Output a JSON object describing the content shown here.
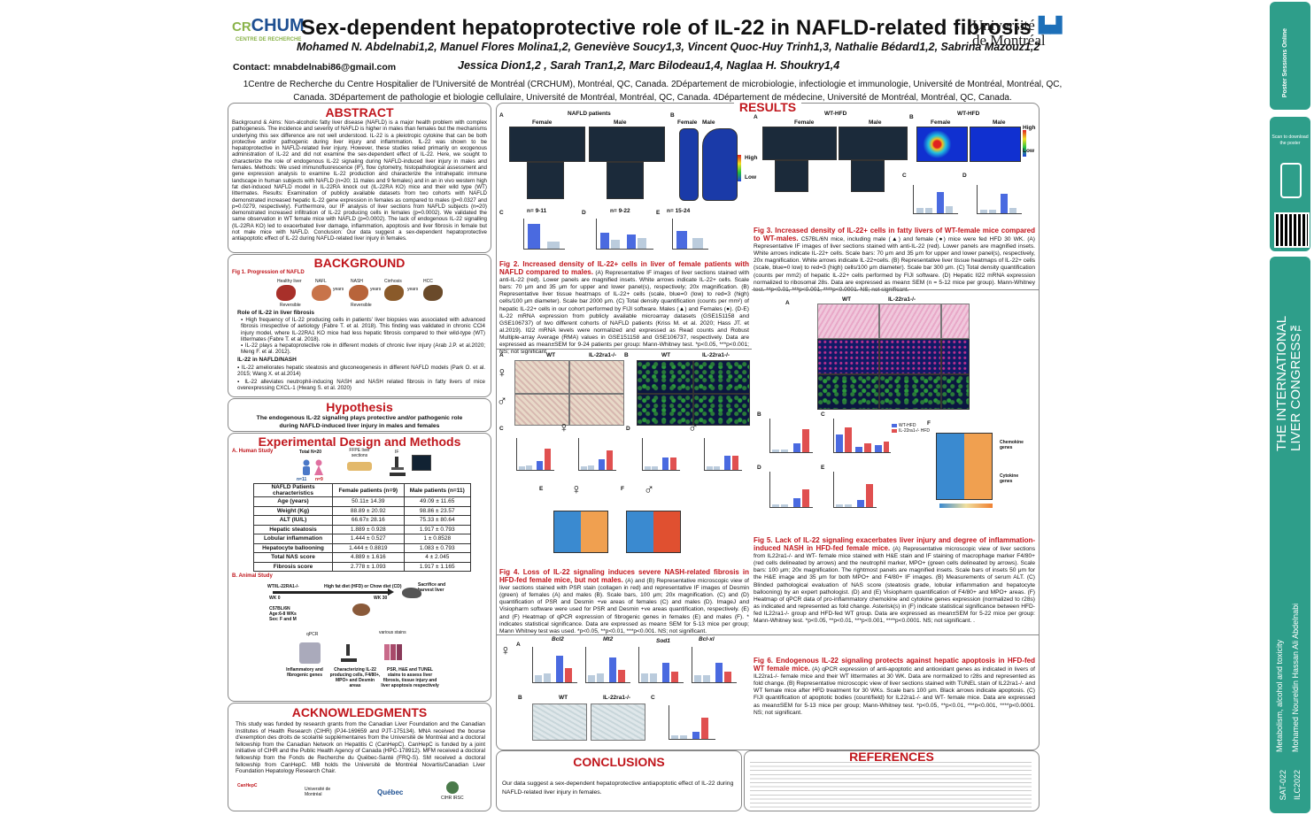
{
  "header": {
    "logo_left": "CRCHUM",
    "logo_left_prefix": "CR",
    "logo_left_sub": "CENTRE DE RECHERCHE",
    "title": "Sex-dependent hepatoprotective role of IL-22 in NAFLD-related fibrosis",
    "logo_right_line1": "Université",
    "logo_right_line2": "de Montréal",
    "authors_line1": "Mohamed N. Abdelnabi1,2, Manuel Flores Molina1,2, Geneviève Soucy1,3, Vincent Quoc-Huy Trinh1,3, Nathalie Bédard1,2, Sabrina Mazouz1,2",
    "authors_line2": "Jessica Dion1,2 , Sarah Tran1,2, Marc Bilodeau1,4, Naglaa H. Shoukry1,4",
    "contact": "Contact: mnabdelnabi86@gmail.com",
    "affiliations_line1": "1Centre de Recherche du Centre Hospitalier de l'Université de Montréal (CRCHUM), Montréal, QC, Canada. 2Département de microbiologie, infectiologie et immunologie, Université de Montréal, Montréal, QC,",
    "affiliations_line2": "Canada. 3Département de pathologie et biologie cellulaire, Université de Montréal, Montréal, QC, Canada. 4Département de médecine, Université de Montréal, Montréal, QC, Canada."
  },
  "abstract": {
    "title": "ABSTRACT",
    "text": "Background & Aims: Non-alcoholic fatty liver disease (NAFLD) is a major health problem with complex pathogenesis. The incidence and severity of NAFLD is higher in males than females but the mechanisms underlying this sex difference are not well understood. IL-22 is a pleiotropic cytokine that can be both protective and/or pathogenic during liver injury and inflammation. IL-22 was shown to be hepatoprotective in NAFLD-related liver injury. However, these studies relied primarily on exogenous administration of IL-22 and did not examine the sex-dependent effect of IL-22. Here, we sought to characterize the role of endogenous IL-22 signaling during NAFLD-induced liver injury in males and females. Methods: We used immunofluorescence (IF), flow cytometry, histopathological assessment and gene expression analysis to examine IL-22 production and characterize the intrahepatic immune landscape in human subjects with NAFLD (n=20; 11 males and 9 females) and in an in vivo western high fat diet-induced NAFLD model in IL-22RA knock out (IL-22RA KO) mice and their wild type (WT) littermates. Results: Examination of publicly available datasets from two cohorts with NAFLD demonstrated increased hepatic IL-22 gene expression in females as compared to males (p=0.0327 and p=0.0279, respectively). Furthermore, our IF analysis of liver sections from NAFLD subjects (n=20) demonstrated increased infiltration of IL-22 producing cells in females (p=0.0002). We validated the same observation in WT female mice with NAFLD (p=0.0002). The lack of endogenous IL-22 signalling (IL-22RA KO) led to exacerbated liver damage, inflammation, apoptosis and liver fibrosis in female but not male mice with NAFLD. Conclusion: Our data suggest a sex-dependent hepatoprotective antiapoptotic effect of IL-22 during NAFLD-related liver injury in females."
  },
  "background": {
    "title": "BACKGROUND",
    "fig1_title": "Fig 1. Progression of NAFLD",
    "stages": [
      "Healthy liver",
      "NAFL",
      "NASH",
      "Cirrhosis",
      "HCC"
    ],
    "arrow_labels": [
      "years",
      "years",
      "years"
    ],
    "reversible": "Reversible",
    "role_title": "Role of IL-22 in liver fibrosis",
    "bullets1": [
      "High frequency of IL-22 producing cells in patients' liver biopsies was associated with advanced fibrosis irrespective of aetiology (Fabre T. et al. 2018). This finding was validated in chronic CCl4 injury model, where IL-22RA1 KO mice had less hepatic fibrosis compared to their wild-type (WT) littermates (Fabre T. et al. 2018).",
      "IL-22 plays a hepatoprotective role in different models of chronic liver injury (Arab J.P. et al.2020; Meng F. et al. 2012)."
    ],
    "nafld_title": "IL-22 in NAFLD/NASH",
    "bullets2": [
      "IL-22 ameliorates hepatic steatosis and gluconeogenesis in different NAFLD models (Park O. et al. 2015; Wang X. et al.2014)",
      "IL-22 alleviates neutrophil-inducing NASH and NASH related fibrosis in fatty livers of mice overexpressing CXCL-1 (Hwang S. et al. 2020)"
    ]
  },
  "hypothesis": {
    "title": "Hypothesis",
    "text": "The endogenous IL-22 signaling plays protective and/or pathogenic role during NAFLD-induced liver injury in males and females"
  },
  "methods": {
    "title": "Experimental Design and Methods",
    "human_title": "A. Human Study",
    "human_total": "Total N=20",
    "human_n1": "n=11",
    "human_n2": "n=9",
    "ffpe": "FFPE liver sections",
    "if_label": "IF",
    "table": {
      "headers": [
        "NAFLD Patients characteristics",
        "Female patients (n=9)",
        "Male patients (n=11)"
      ],
      "rows": [
        [
          "Age (years)",
          "50.11± 14.39",
          "49.09 ± 11.65"
        ],
        [
          "Weight (Kg)",
          "88.89 ± 20.92",
          "98.86 ± 23.57"
        ],
        [
          "ALT (IU/L)",
          "66.67± 28.16",
          "75.33 ± 80.64"
        ],
        [
          "Hepatic steatosis",
          "1.889 ± 0.928",
          "1.917 ± 0.793"
        ],
        [
          "Lobular inflammation",
          "1.444 ± 0.527",
          "1 ± 0.8528"
        ],
        [
          "Hepatocyte ballooning",
          "1.444 ± 0.8819",
          "1.083 ± 0.793"
        ],
        [
          "Total NAS score",
          "4.889 ± 1.616",
          "4 ± 2.045"
        ],
        [
          "Fibrosis score",
          "2.778 ± 1.093",
          "1.917 ± 1.165"
        ]
      ]
    },
    "animal_title": "B. Animal Study",
    "animal_mice": "WT/IL-22RA1-/-",
    "animal_diet": "High fat diet (HFD) or Chow diet (CD)",
    "sacrifice": "Sacrifice and harvest liver",
    "wk0": "WK 0",
    "wk30": "WK 30",
    "mouse_info": "C57BL/6N Age:6-8 WKs Sex: F and M",
    "qpcr": "qPCR",
    "various": "various stains",
    "out1": "Inflammatory and fibrogenic genes",
    "out2": "Characterizing IL-22 producing cells, F4/80+, MPO+ and Desmin areas",
    "out3": "PSR, H&E and TUNEL stains to assess liver fibrosis, tissue injury and liver apoptosis respectively"
  },
  "ack": {
    "title": "ACKNOWLEDGMENTS",
    "text": "This study was funded by research grants from the Canadian Liver Foundation and the Canadian Institutes of Health Research (CIHR) (PJ4-169659 and PJT-175134). MNA received the bourse d'exemption des droits de scolarité supplémentaires from the Université de Montréal and a doctoral fellowship from the Canadian Network on Hepatitis C (CanHepC). CanHepC is funded by a joint initiative of CIHR and the Public Health Agency of Canada (HPC-178912). MFM received a doctoral fellowship from the Fonds de Recherche du Québec-Santé (FRQ-S). SM received a doctoral fellowship from CanHepC. MB holds the Université de Montréal Novartis/Canadian Liver Foundation Hepatology Research Chair.",
    "logos": [
      "CanHepC",
      "Université de Montréal",
      "Québec",
      "CIHR IRSC"
    ]
  },
  "results": {
    "title": "RESULTS",
    "fig2": {
      "panelA": "NAFLD patients",
      "female": "Female",
      "male": "Male",
      "high": "High",
      "low": "Low",
      "n_c": "n= 9-11",
      "n_d": "n= 9-22",
      "n_e": "n= 15-24",
      "caption_title": "Fig 2. Increased density of IL-22+ cells in liver of female patients with NAFLD compared to males.",
      "caption": "(A) Representative IF images of liver sections stained with anti-IL-22 (red). Lower panels are magnified insets. White arrows indicate IL-22+ cells. Scale bars: 70 μm and 35 μm for upper and lower panel(s), respectively; 20x magnification. (B) Representative liver tissue heatmaps of IL-22+ cells (scale, blue=0 (low) to red=3 (high) cells/100 μm diameter). Scale bar 2000 μm. (C) Total density quantification (counts per mm²) of hepatic IL-22+ cells in our cohort performed by FIJI software. Males (▲) and Females (●). (D-E) IL-22 mRNA expression from publicly available microarray datasets (GSE151158 and GSE106737) of two different cohorts of NAFLD patients (Kriss M. et al. 2020; Hass JT. et al.2019). Il22 mRNA levels were normalized and expressed as Read counts and Robust Multiple-array Average (RMA) values in GSE151158 and GSE106737, respectively. Data are expressed as mean±SEM for 9-24 patients per group: Mann-Whitney test. *p<0.05, ***p<0.001; NS; not significant"
    },
    "fig3": {
      "panelA": "WT-HFD",
      "panelB": "WT-HFD",
      "female": "Female",
      "male": "Male",
      "high": "High",
      "low": "Low",
      "caption_title": "Fig 3. Increased density of IL-22+ cells in fatty livers of WT-female mice compared to WT-males.",
      "caption": "C57BL/6N mice, including male (▲) and female (●) mice were fed HFD 30 WK. (A) Representative IF images of liver sections stained with anti-IL-22 (red). Lower panels are magnified insets. White arrows indicate IL-22+ cells. Scale bars: 70 μm and 35 μm for upper and lower panel(s), respectively, 20x magnification. White arrows indicate IL-22+cells. (B) Representative liver tissue heatmaps of IL-22+ cells (scale, blue=0 low) to red=3 (high) cells/100 μm diameter). Scale bar 300 μm. (C) Total density quantification (counts per mm2) of hepatic IL-22+ cells performed by FIJI software. (D) Hepatic Il22 mRNA expression normalized to ribosomal 28s. Data are expressed as mean± SEM (n = 5-12 mice per group). Mann-Whitney test. **p<0.01, ***p<0.001, ****p<0.0001. NS; not significant."
    },
    "fig4": {
      "wt": "WT",
      "ko": "IL-22ra1-/-",
      "caption_title": "Fig 4. Loss of IL-22 signaling induces severe NASH-related fibrosis in HFD-fed female mice, but not males.",
      "caption": "(A) and (B) Representative microscopic view of liver sections stained with PSR stain (collagen in red) and representative IF images of Desmin (green) of females (A) and males (B). Scale bars, 100 μm; 20x magnification. (C) and (D) quantification of PSR and Desmin +ve areas of females (C) and males (D). ImageJ and Visiopharm software were used for PSR and Desmin +ve areas quantification, respectively. (E) and (F) Heatmap of qPCR expression of fibrogenic genes in females (E) and males (F). * indicates statistical significance. Data are expressed as mean± SEM for 5-13 mice per group; Mann Whitney test was used. *p<0.05, **p<0.01, ***p<0.001. NS; not significant."
    },
    "fig5": {
      "wt": "WT",
      "ko": "IL-22ra1-/-",
      "legend1": "WT-HFD",
      "legend2": "IL-22ra1-/- HFD",
      "genes1": "Chemokine genes",
      "genes2": "Cytokine genes",
      "caption_title": "Fig 5. Lack of IL-22 signaling exacerbates liver injury and degree of inflammation-induced NASH in HFD-fed female mice.",
      "caption": "(A) Representative microscopic view of liver sections from IL22ra1-/- and WT- female mice stained with H&E stain and IF staining of macrophage marker F4/80+ (red cells delineated by arrows) and the neutrophil marker, MPO+ (green cells delineated by arrows). Scale bars: 100 μm; 20x magnification. The rightmost panels are magnified insets. Scale bars of insets 50 μm for the H&E image and 35 μm for both MPO+ and F4/80+ IF images. (B) Measurements of serum ALT. (C) Blinded pathological evaluation of NAS score (steatosis grade, lobular inflammation and hepatocyte ballooning) by an expert pathologist. (D) and (E) Visiopharm quantification of F4/80+ and MPO+ areas. (F) Heatmap of qPCR data of pro-inflammatory chemokine and cytokine genes expression (normalized to r28s) as indicated and represented as fold change. Asterisk(s) in (F) indicate statistical significance between HFD-fed IL22ra1-/- group and HFD-fed WT group. Data are expressed as mean±SEM for 5-22 mice per group: Mann-Whitney test. *p<0.05, **p<0.01, ***p<0.001, ****p<0.0001. NS; not significant. ."
    },
    "fig6": {
      "genes": [
        "Bcl2",
        "Mt2",
        "Sod1",
        "Bcl-xl"
      ],
      "wt": "WT",
      "ko": "IL-22ra1-/-",
      "caption_title": "Fig 6. Endogenous IL-22 signaling protects against hepatic apoptosis in HFD-fed WT female mice.",
      "caption": "(A) qPCR expression of anti-apoptotic and antioxidant genes as indicated in livers of IL22ra1-/- female mice and their WT littermates at 30 WK. Data are normalized to r28s and represented as fold change. (B) Representative microscopic view of liver sections stained with TUNEL stain of IL22ra1-/- and WT female mice after HFD treatment for 30 WKs. Scale bars 100 μm. Black arrows indicate apoptosis. (C) FIJI quantification of apoptotic bodies (count/field) for IL22ra1-/- and WT- female mice. Data are expressed as mean±SEM for 5-13 mice per group; Mann-Whitney test. *p<0.05, **p<0.01, ***p<0.001, ****p<0.0001. NS; not significant."
    }
  },
  "conclusions": {
    "title": "CONCLUSIONS",
    "text": "Our data suggest a sex-dependent hepatoprotective antiapoptotic effect of IL-22 during NAFLD-related liver injury in females."
  },
  "references": {
    "title": "REFERENCES"
  },
  "sidebar": {
    "scan_label": "Scan to download the poster",
    "congress": "THE INTERNATIONAL LIVER CONGRESS™",
    "topic": "Metabolism, alcohol and toxicity",
    "presenter": "Mohamed Noureldin Hassan Ali Abdelnabi",
    "poster_id": "SAT-022",
    "event": "ILC2022",
    "brand": "Poster Sessions Online"
  },
  "colors": {
    "accent_red": "#c0161c",
    "brand_blue": "#1d4f91",
    "sidebar_teal": "#2e9e8a"
  }
}
